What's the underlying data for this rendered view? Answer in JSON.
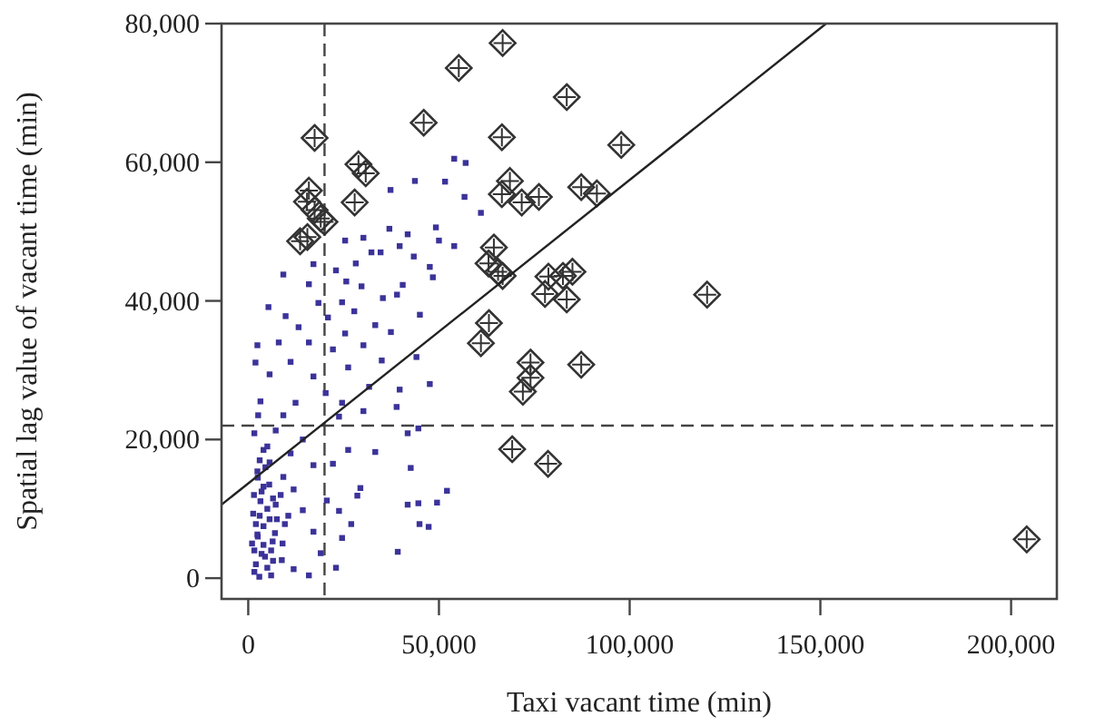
{
  "chart_data": {
    "type": "scatter",
    "xlabel": "Taxi vacant time (min)",
    "ylabel": "Spatial lag value of vacant time (min)",
    "xlim": [
      -7000,
      212000
    ],
    "ylim": [
      -3000,
      80000
    ],
    "xticks": [
      0,
      {
        "value": 50000,
        "label": "50,000"
      },
      {
        "value": 100000,
        "label": "100,000"
      },
      {
        "value": 150000,
        "label": "150,000"
      },
      {
        "value": 200000,
        "label": "200,000"
      }
    ],
    "yticks": [
      0,
      {
        "value": 20000,
        "label": "20,000"
      },
      {
        "value": 40000,
        "label": "40,000"
      },
      {
        "value": 60000,
        "label": "60,000"
      },
      {
        "value": 80000,
        "label": "80,000"
      }
    ],
    "grid": false,
    "ref_lines": [
      {
        "axis": "x",
        "value": 20000,
        "line_style": "dashed",
        "color": "#444444"
      },
      {
        "axis": "y",
        "value": 22000,
        "line_style": "dashed",
        "color": "#444444"
      }
    ],
    "series": [
      {
        "marker": "square",
        "color": "#3b3399",
        "x": [
          54000,
          57000,
          43700,
          51600,
          37300,
          56700,
          61000,
          49200,
          37000,
          41800,
          25400,
          30200,
          50000,
          54000,
          39700,
          32300,
          34700,
          43400,
          28200,
          17100,
          47600,
          23000,
          9200,
          25700,
          48400,
          29700,
          40500,
          15900,
          35300,
          24600,
          39000,
          5300,
          18400,
          45000,
          27800,
          9800,
          33300,
          20900,
          13200,
          25400,
          37400,
          8000,
          15900,
          2400,
          30200,
          22200,
          44100,
          11100,
          35000,
          1900,
          26200,
          5600,
          17100,
          47600,
          31700,
          39700,
          3200,
          20300,
          12400,
          24600,
          38900,
          30200,
          9200,
          2600,
          23800,
          1600,
          7200,
          14300,
          41800,
          44600,
          4000,
          11100,
          26200,
          33300,
          22200,
          17100,
          5600,
          2400,
          42600,
          9200,
          11900,
          4000,
          29400,
          28600,
          52100,
          20600,
          3200,
          7200,
          41800,
          44600,
          49500,
          1300,
          14300,
          23800,
          5600,
          9600,
          27000,
          44900,
          47300,
          2400,
          17100,
          24600,
          6400,
          1600,
          19000,
          39200,
          4400,
          8800,
          11900,
          23000,
          1600,
          6000,
          15900,
          2900,
          2000,
          3500,
          5000,
          2500,
          4000,
          6000,
          3000,
          5000,
          7000,
          1500,
          3500,
          5500,
          2500,
          4500,
          6500,
          1000,
          7500,
          3000,
          5000,
          8500,
          2000,
          4000,
          6500,
          9000,
          10500
        ],
        "values": [
          60500,
          59900,
          57300,
          57200,
          56000,
          55000,
          52700,
          50600,
          50400,
          49600,
          48700,
          49100,
          48700,
          47900,
          47900,
          47000,
          47000,
          46400,
          45400,
          45300,
          44900,
          44400,
          43800,
          42800,
          43400,
          42100,
          42300,
          42400,
          40400,
          39800,
          40900,
          39100,
          39700,
          38000,
          38500,
          37800,
          36500,
          37600,
          36200,
          35300,
          35500,
          34000,
          34000,
          33600,
          33600,
          33000,
          31900,
          31200,
          31400,
          31100,
          30400,
          29400,
          29100,
          28000,
          27600,
          27200,
          25500,
          26700,
          25300,
          25300,
          24700,
          24100,
          23500,
          23500,
          23300,
          20900,
          21300,
          20000,
          20900,
          21600,
          18500,
          18000,
          18500,
          18200,
          16500,
          16300,
          16700,
          15400,
          15900,
          14600,
          12800,
          13200,
          13000,
          11900,
          12600,
          11200,
          11100,
          10600,
          10600,
          10800,
          10900,
          9300,
          9800,
          9700,
          8500,
          7800,
          7800,
          7800,
          7400,
          6300,
          6700,
          5800,
          5300,
          4000,
          3600,
          3800,
          3100,
          2600,
          1300,
          1500,
          900,
          400,
          400,
          200,
          2000,
          3500,
          1500,
          6000,
          7500,
          4000,
          9000,
          10000,
          6500,
          12000,
          12500,
          13500,
          14500,
          16000,
          11500,
          5000,
          8500,
          17000,
          19000,
          12000,
          7800,
          4800,
          2500,
          5000,
          9000
        ]
      },
      {
        "marker": "diamond",
        "color": "#333333",
        "x": [
          66700,
          55200,
          83500,
          46000,
          17400,
          66500,
          97800,
          28900,
          30800,
          15900,
          15400,
          27900,
          68600,
          66500,
          71700,
          76200,
          87300,
          91400,
          17400,
          19000,
          20000,
          15500,
          13600,
          64400,
          63000,
          65500,
          66700,
          78700,
          82500,
          85000,
          77800,
          83500,
          120300,
          63100,
          61000,
          74000,
          87300,
          74000,
          72000,
          69200,
          78600,
          204100
        ],
        "values": [
          77200,
          73600,
          69400,
          65700,
          63500,
          63600,
          62500,
          59700,
          58400,
          55900,
          54300,
          54200,
          57300,
          55400,
          54200,
          55000,
          56400,
          55500,
          53100,
          51900,
          51400,
          49200,
          48600,
          47700,
          45400,
          44200,
          43600,
          43500,
          43600,
          44200,
          41000,
          40200,
          40900,
          36800,
          33900,
          31100,
          30800,
          28900,
          26900,
          18600,
          16500,
          5600
        ]
      },
      {
        "type": "line",
        "color": "#222222",
        "line_style": "solid",
        "x": [
          -7000,
          151500
        ],
        "values": [
          10600,
          80000
        ]
      }
    ]
  }
}
